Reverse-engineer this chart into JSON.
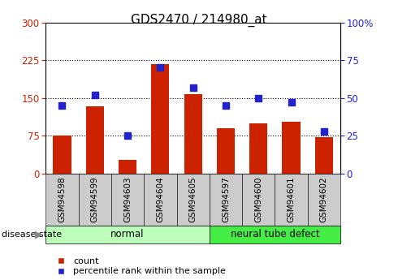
{
  "title": "GDS2470 / 214980_at",
  "samples": [
    "GSM94598",
    "GSM94599",
    "GSM94603",
    "GSM94604",
    "GSM94605",
    "GSM94597",
    "GSM94600",
    "GSM94601",
    "GSM94602"
  ],
  "bar_values": [
    75,
    133,
    27,
    218,
    158,
    90,
    100,
    103,
    72
  ],
  "percentile_values": [
    45,
    52,
    25,
    70,
    57,
    45,
    50,
    47,
    28
  ],
  "bar_color": "#cc2200",
  "marker_color": "#2222cc",
  "left_ylim": [
    0,
    300
  ],
  "left_yticks": [
    0,
    75,
    150,
    225,
    300
  ],
  "right_ylim": [
    0,
    100
  ],
  "right_yticks": [
    0,
    25,
    50,
    75,
    100
  ],
  "right_yticklabels": [
    "0",
    "25",
    "50",
    "75",
    "100%"
  ],
  "groups": [
    {
      "label": "normal",
      "span": [
        0,
        4
      ],
      "color": "#bbffbb"
    },
    {
      "label": "neural tube defect",
      "span": [
        5,
        8
      ],
      "color": "#44ee44"
    }
  ],
  "disease_state_label": "disease state",
  "legend_items": [
    {
      "label": "count",
      "color": "#cc2200"
    },
    {
      "label": "percentile rank within the sample",
      "color": "#2222cc"
    }
  ],
  "grid_color": "black",
  "background_color": "#ffffff",
  "tick_bg_color": "#cccccc",
  "left_tick_color": "#cc2200",
  "right_tick_color": "#2222cc",
  "gridline_ticks": [
    75,
    150,
    225
  ],
  "normal_group_color": "#bbffbb",
  "neural_group_color": "#44ee44"
}
